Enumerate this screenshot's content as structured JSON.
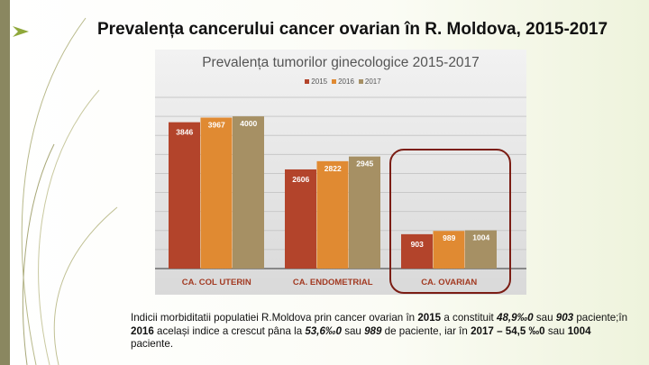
{
  "slide": {
    "title": "Prevalența cancerului cancer ovarian în R. Moldova, 2015-2017"
  },
  "chart_data": {
    "type": "bar",
    "title": "Prevalența tumorilor ginecologice 2015-2017",
    "categories": [
      "CA. COL UTERIN",
      "CA. ENDOMETRIAL",
      "CA. OVARIAN"
    ],
    "series": [
      {
        "name": "2015",
        "color": "#b3442b",
        "values": [
          3846,
          2606,
          903
        ]
      },
      {
        "name": "2016",
        "color": "#e08a32",
        "values": [
          3967,
          2822,
          989
        ]
      },
      {
        "name": "2017",
        "color": "#a69064",
        "values": [
          4000,
          2945,
          1004
        ]
      }
    ],
    "ylim": [
      0,
      4500
    ],
    "grid": true,
    "legend": "top-center",
    "xlabel": "",
    "ylabel": "",
    "highlight": "CA. OVARIAN"
  },
  "paragraph": [
    {
      "t": "Indicii morbiditatii populatiei R.Moldova prin cancer ovarian în ",
      "s": ""
    },
    {
      "t": "2015",
      "s": "b"
    },
    {
      "t": " a constituit ",
      "s": ""
    },
    {
      "t": "48,9‰0",
      "s": "bi"
    },
    {
      "t": " sau ",
      "s": ""
    },
    {
      "t": "903",
      "s": "bi"
    },
    {
      "t": " paciente;în ",
      "s": ""
    },
    {
      "t": "2016",
      "s": "b"
    },
    {
      "t": " același indice a crescut pâna la ",
      "s": ""
    },
    {
      "t": "53,6‰0",
      "s": "bi"
    },
    {
      "t": " sau ",
      "s": ""
    },
    {
      "t": "989",
      "s": "bi"
    },
    {
      "t": " de paciente, iar în ",
      "s": ""
    },
    {
      "t": "2017 –",
      "s": "b"
    },
    {
      "t": " ",
      "s": ""
    },
    {
      "t": "54,5 ‰0",
      "s": "b"
    },
    {
      "t": " sau ",
      "s": ""
    },
    {
      "t": "1004",
      "s": "b"
    },
    {
      "t": " paciente.",
      "s": ""
    }
  ]
}
